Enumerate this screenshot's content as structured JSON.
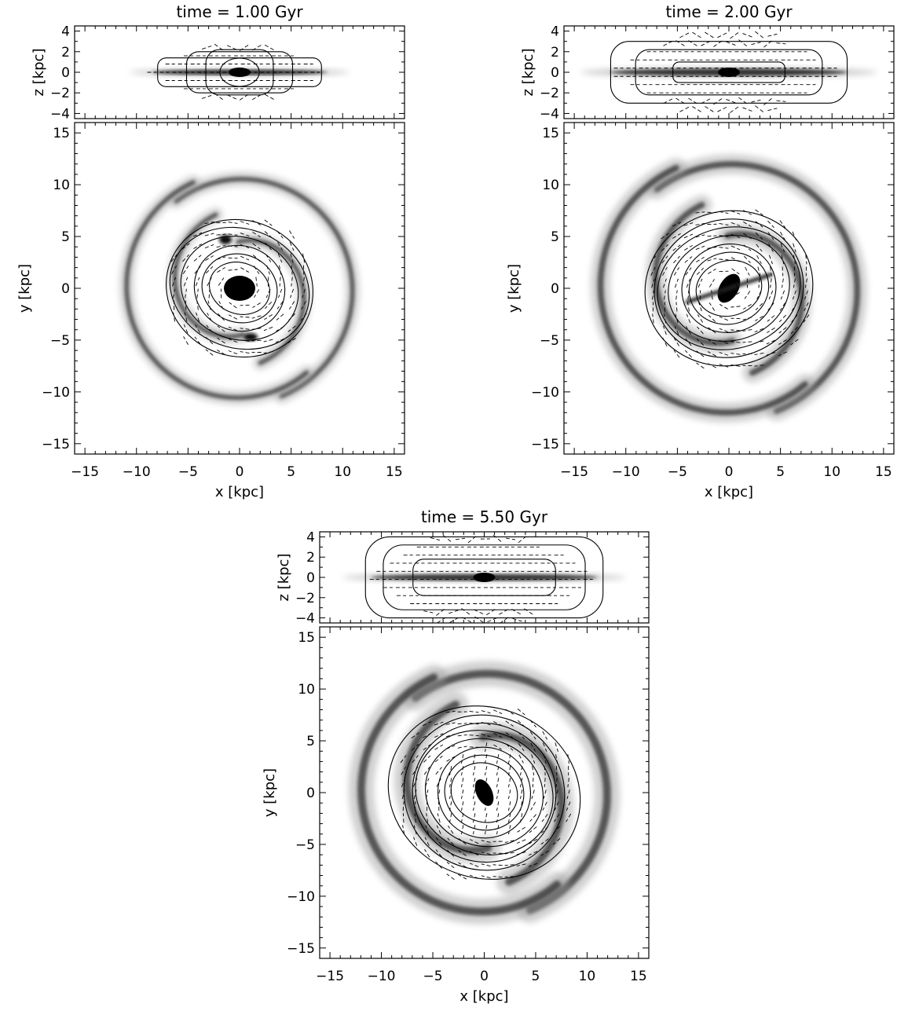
{
  "figure": {
    "panels": [
      {
        "title": "time =  1.00 Gyr",
        "edge_on": {
          "xlabel": "",
          "ylabel": "z [kpc]",
          "ylim": [
            -4.5,
            4.5
          ],
          "yticks": [
            -4,
            -2,
            0,
            2,
            4
          ]
        },
        "face_on": {
          "xlabel": "x [kpc]",
          "ylabel": "y [kpc]",
          "xlim": [
            -16,
            16
          ],
          "ylim": [
            -16,
            16
          ],
          "xticks": [
            -15,
            -10,
            -5,
            0,
            5,
            10,
            15
          ],
          "yticks": [
            -15,
            -10,
            -5,
            0,
            5,
            10,
            15
          ]
        }
      },
      {
        "title": "time =  2.00 Gyr",
        "edge_on": {
          "xlabel": "",
          "ylabel": "z [kpc]",
          "ylim": [
            -4.5,
            4.5
          ],
          "yticks": [
            -4,
            -2,
            0,
            2,
            4
          ]
        },
        "face_on": {
          "xlabel": "x [kpc]",
          "ylabel": "y [kpc]",
          "xlim": [
            -16,
            16
          ],
          "ylim": [
            -16,
            16
          ],
          "xticks": [
            -15,
            -10,
            -5,
            0,
            5,
            10,
            15
          ],
          "yticks": [
            -15,
            -10,
            -5,
            0,
            5,
            10,
            15
          ]
        }
      },
      {
        "title": "time =  5.50 Gyr",
        "edge_on": {
          "xlabel": "",
          "ylabel": "z [kpc]",
          "ylim": [
            -4.5,
            4.5
          ],
          "yticks": [
            -4,
            -2,
            0,
            2,
            4
          ]
        },
        "face_on": {
          "xlabel": "x [kpc]",
          "ylabel": "y [kpc]",
          "xlim": [
            -16,
            16
          ],
          "ylim": [
            -16,
            16
          ],
          "xticks": [
            -15,
            -10,
            -5,
            0,
            5,
            10,
            15
          ],
          "yticks": [
            -15,
            -10,
            -5,
            0,
            5,
            10,
            15
          ]
        }
      }
    ],
    "colors": {
      "ink": "#000000",
      "background": "#ffffff"
    }
  }
}
